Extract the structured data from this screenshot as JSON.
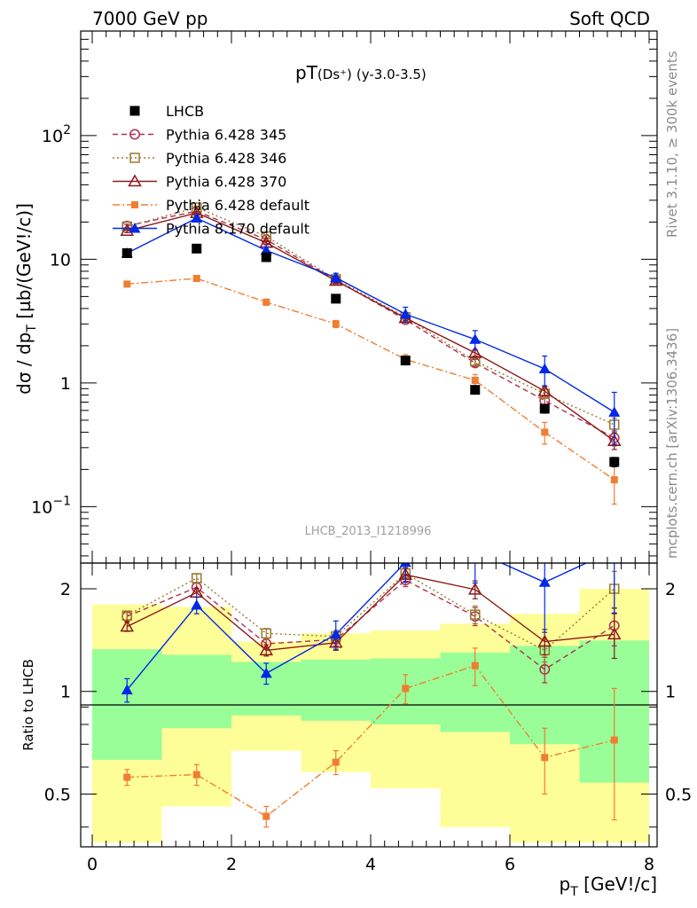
{
  "header": {
    "left": "7000 GeV pp",
    "right": "Soft QCD"
  },
  "side_text": {
    "rivet": "Rivet 3.1.10, ≥ 300k events",
    "mcplots": "mcplots.cern.ch [arXiv:1306.3436]"
  },
  "chart_data": [
    {
      "type": "scatter",
      "title": "pT(Ds⁺) (y-3.0-3.5)",
      "title_main": "pT",
      "title_sub": "(Ds⁺)",
      "title_range": "(y-3.0-3.5)",
      "watermark": "LHCB_2013_I1218996",
      "ylabel": "dσ / dp_T [µb/(GeV!/c)]",
      "xlabel": "p_T [GeV!/c]",
      "xlim": [
        0,
        8
      ],
      "ylim": [
        0.035,
        700
      ],
      "yscale": "log",
      "y_ticks": [
        {
          "value": 0.1,
          "label": "10",
          "sup": "−1"
        },
        {
          "value": 1,
          "label": "1",
          "sup": ""
        },
        {
          "value": 10,
          "label": "10",
          "sup": ""
        },
        {
          "value": 100,
          "label": "10",
          "sup": "2"
        }
      ],
      "x": [
        0.5,
        1.5,
        2.5,
        3.5,
        4.5,
        5.5,
        6.5,
        7.5
      ],
      "legend_position": "top-left",
      "series": [
        {
          "name": "LHCB",
          "color": "#000000",
          "style": "none",
          "marker": "square-filled",
          "values": [
            11.2,
            12.2,
            10.4,
            4.8,
            1.52,
            0.88,
            0.62,
            0.23
          ],
          "err": [
            0.8,
            0.7,
            0.7,
            0.35,
            0.1,
            0.06,
            0.05,
            0.02
          ]
        },
        {
          "name": "Pythia 6.428 345",
          "color": "#b03050",
          "style": "dashed",
          "marker": "circle-open",
          "values": [
            18.6,
            24.5,
            14.4,
            6.8,
            3.25,
            1.45,
            0.72,
            0.36
          ],
          "err": [
            0.6,
            0.7,
            0.5,
            0.3,
            0.15,
            0.1,
            0.07,
            0.05
          ]
        },
        {
          "name": "Pythia 6.428 346",
          "color": "#9a7a30",
          "style": "dotted",
          "marker": "square-open",
          "values": [
            18.4,
            26.2,
            15.3,
            6.9,
            3.4,
            1.5,
            0.82,
            0.46
          ],
          "err": [
            0.6,
            0.7,
            0.5,
            0.3,
            0.15,
            0.1,
            0.07,
            0.06
          ]
        },
        {
          "name": "Pythia 6.428 370",
          "color": "#8b1a1a",
          "style": "solid",
          "marker": "triangle-open",
          "values": [
            17.0,
            23.7,
            13.6,
            6.7,
            3.35,
            1.75,
            0.86,
            0.34
          ],
          "err": [
            0.6,
            0.7,
            0.5,
            0.3,
            0.15,
            0.1,
            0.07,
            0.05
          ]
        },
        {
          "name": "Pythia 6.428 default",
          "color": "#f07d32",
          "style": "dashdot",
          "marker": "square-filled-small",
          "values": [
            6.3,
            7.0,
            4.5,
            3.0,
            1.55,
            1.05,
            0.4,
            0.165
          ],
          "err": [
            0.3,
            0.35,
            0.25,
            0.2,
            0.15,
            0.12,
            0.08,
            0.06
          ]
        },
        {
          "name": "Pythia 8.170 default",
          "color": "#0028e6",
          "style": "solid",
          "marker": "triangle-filled",
          "values": [
            11.2,
            21.5,
            11.8,
            7.1,
            3.6,
            2.25,
            1.3,
            0.58
          ],
          "err": [
            0.8,
            1.0,
            0.8,
            0.6,
            0.5,
            0.4,
            0.35,
            0.26
          ]
        }
      ]
    },
    {
      "type": "scatter",
      "ylabel": "Ratio to LHCB",
      "xlabel": "p_T [GeV!/c]",
      "xlim": [
        0,
        8
      ],
      "ylim": [
        0.35,
        2.38
      ],
      "yscale": "log",
      "y_ticks": [
        0.5,
        1,
        2
      ],
      "x_ticks": [
        0,
        2,
        4,
        6,
        8
      ],
      "reference": 1,
      "bins": [
        0,
        1,
        2,
        3,
        4,
        5,
        6,
        7,
        8
      ],
      "band_green": [
        [
          0.63,
          1.33
        ],
        [
          0.78,
          1.28
        ],
        [
          0.85,
          1.22
        ],
        [
          0.82,
          1.24
        ],
        [
          0.8,
          1.25
        ],
        [
          0.76,
          1.3
        ],
        [
          0.7,
          1.36
        ],
        [
          0.54,
          1.41
        ]
      ],
      "band_yellow": [
        [
          0.36,
          1.8
        ],
        [
          0.46,
          1.77
        ],
        [
          0.67,
          1.4
        ],
        [
          0.58,
          1.48
        ],
        [
          0.52,
          1.51
        ],
        [
          0.4,
          1.58
        ],
        [
          0.36,
          1.69
        ],
        [
          0.36,
          2.0
        ]
      ],
      "band_colors": {
        "green": "#99fe98",
        "yellow": "#fefe98"
      },
      "x": [
        0.5,
        1.5,
        2.5,
        3.5,
        4.5,
        5.5,
        6.5,
        7.5
      ],
      "series": [
        {
          "name": "Pythia 6.428 345",
          "values": [
            1.66,
            2.02,
            1.38,
            1.42,
            2.12,
            1.66,
            1.16,
            1.56
          ],
          "err": [
            0.05,
            0.06,
            0.05,
            0.06,
            0.09,
            0.1,
            0.1,
            0.2
          ]
        },
        {
          "name": "Pythia 6.428 346",
          "values": [
            1.67,
            2.15,
            1.48,
            1.45,
            2.22,
            1.68,
            1.32,
            2.0
          ],
          "err": [
            0.05,
            0.06,
            0.05,
            0.06,
            0.09,
            0.1,
            0.1,
            0.25
          ]
        },
        {
          "name": "Pythia 6.428 370",
          "values": [
            1.55,
            1.95,
            1.32,
            1.39,
            2.2,
            1.99,
            1.4,
            1.47
          ],
          "err": [
            0.05,
            0.06,
            0.05,
            0.07,
            0.1,
            0.12,
            0.12,
            0.22
          ]
        },
        {
          "name": "Pythia 6.428 default",
          "values": [
            0.56,
            0.57,
            0.43,
            0.62,
            1.02,
            1.19,
            0.64,
            0.72
          ],
          "err": [
            0.03,
            0.04,
            0.03,
            0.05,
            0.1,
            0.15,
            0.14,
            0.3
          ]
        },
        {
          "name": "Pythia 8.170 default",
          "values": [
            1.01,
            1.79,
            1.13,
            1.47,
            2.39,
            2.58,
            2.09,
            2.6
          ],
          "err": [
            0.08,
            0.1,
            0.08,
            0.14,
            0.3,
            0.5,
            0.6,
            0.9
          ]
        }
      ]
    }
  ]
}
